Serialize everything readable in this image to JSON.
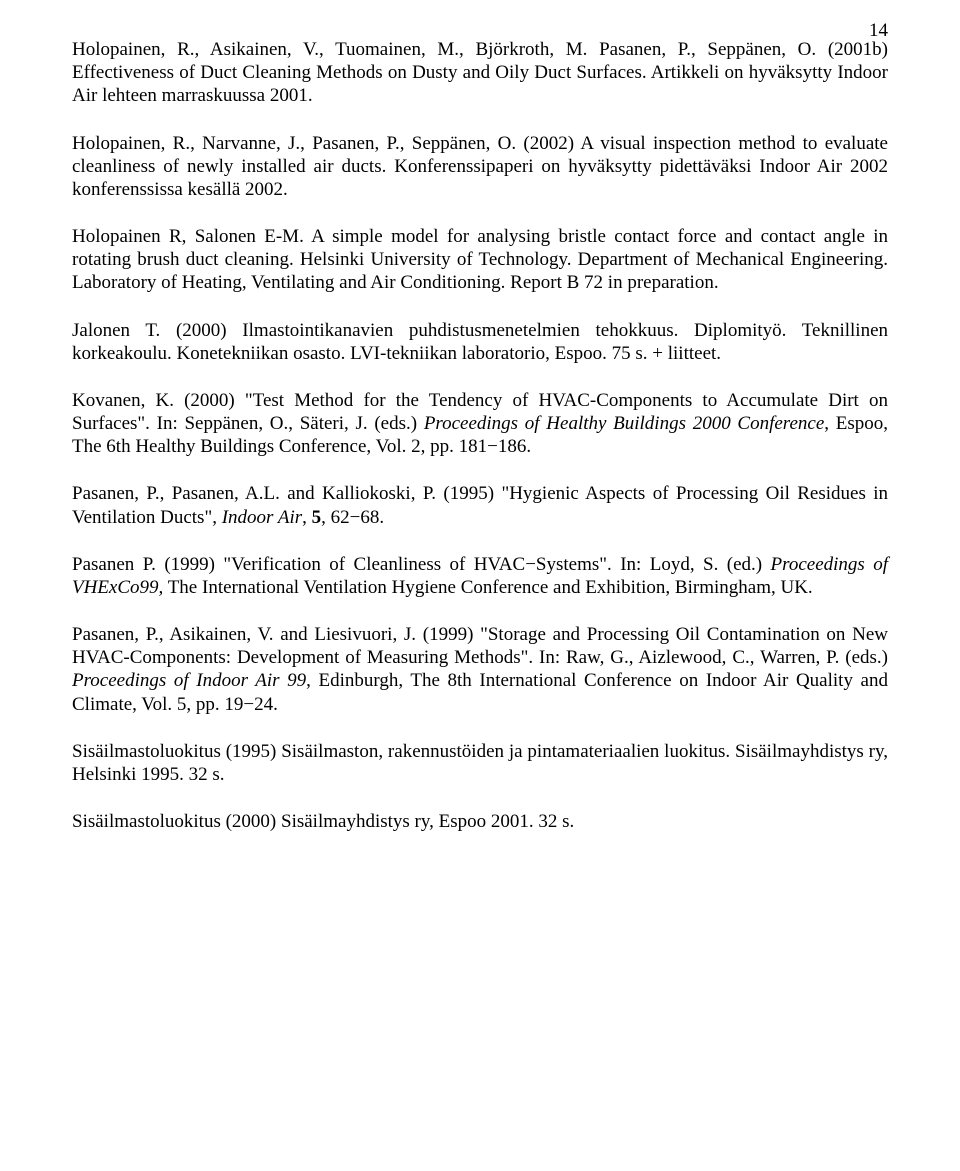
{
  "pageNumber": "14",
  "paragraphs": [
    {
      "segments": [
        {
          "text": "Holopainen, R., Asikainen, V., Tuomainen, M., Björkroth, M. Pasanen, P., Seppänen, O. (2001b) Effectiveness of Duct Cleaning Methods on Dusty and Oily Duct Surfaces. Artikkeli on hyväksytty Indoor Air lehteen marraskuussa 2001."
        }
      ]
    },
    {
      "segments": [
        {
          "text": "Holopainen, R., Narvanne, J., Pasanen, P., Seppänen, O. (2002) A visual inspection method to evaluate cleanliness of newly installed air ducts. Konferenssipaperi on hyväksytty pidettäväksi Indoor Air 2002 konferenssissa kesällä 2002."
        }
      ]
    },
    {
      "segments": [
        {
          "text": "Holopainen R, Salonen E-M. A simple model for analysing bristle contact force and contact angle in rotating brush duct cleaning. Helsinki University of Technology. Department of Mechanical Engineering. Laboratory of Heating, Ventilating and Air Conditioning. Report B 72 in preparation."
        }
      ]
    },
    {
      "segments": [
        {
          "text": "Jalonen T. (2000) Ilmastointikanavien puhdistusmenetelmien tehokkuus. Diplomityö. Teknillinen korkeakoulu. Konetekniikan osasto. LVI-tekniikan laboratorio, Espoo. 75 s. + liitteet."
        }
      ]
    },
    {
      "segments": [
        {
          "text": "Kovanen, K. (2000) \"Test Method for the Tendency of HVAC-Components to Accumulate Dirt on Surfaces\". In: Seppänen, O., Säteri, J. (eds.) "
        },
        {
          "text": "Proceedings of Healthy Buildings 2000 Conference",
          "italic": true
        },
        {
          "text": ", Espoo, The 6th Healthy Buildings Conference, Vol. 2, pp. 181−186."
        }
      ]
    },
    {
      "segments": [
        {
          "text": "Pasanen, P., Pasanen, A.L. and Kalliokoski, P. (1995) \"Hygienic Aspects of Processing Oil Residues in Ventilation Ducts\", "
        },
        {
          "text": "Indoor Air",
          "italic": true
        },
        {
          "text": ", "
        },
        {
          "text": "5",
          "bold": true
        },
        {
          "text": ", 62−68."
        }
      ]
    },
    {
      "segments": [
        {
          "text": "Pasanen P. (1999) \"Verification of Cleanliness of HVAC−Systems\". In: Loyd, S. (ed.) "
        },
        {
          "text": "Proceedings of VHExCo99,",
          "italic": true
        },
        {
          "text": " The International Ventilation Hygiene Conference and Exhibition, Birmingham, UK."
        }
      ]
    },
    {
      "segments": [
        {
          "text": "Pasanen, P., Asikainen, V. and Liesivuori, J. (1999) \"Storage and Processing Oil Contamination on New HVAC-Components: Development of Measuring Methods\". In: Raw, G., Aizlewood, C., Warren, P. (eds.) "
        },
        {
          "text": "Proceedings of Indoor Air 99",
          "italic": true
        },
        {
          "text": ", Edinburgh, The 8th International Conference on Indoor Air Quality and Climate, Vol. 5, pp. 19−24."
        }
      ]
    },
    {
      "segments": [
        {
          "text": "Sisäilmastoluokitus (1995) Sisäilmaston, rakennustöiden ja pintamateriaalien luokitus. Sisäilmayhdistys ry, Helsinki 1995. 32 s."
        }
      ]
    },
    {
      "segments": [
        {
          "text": "Sisäilmastoluokitus (2000) Sisäilmayhdistys ry, Espoo 2001. 32 s."
        }
      ]
    }
  ]
}
